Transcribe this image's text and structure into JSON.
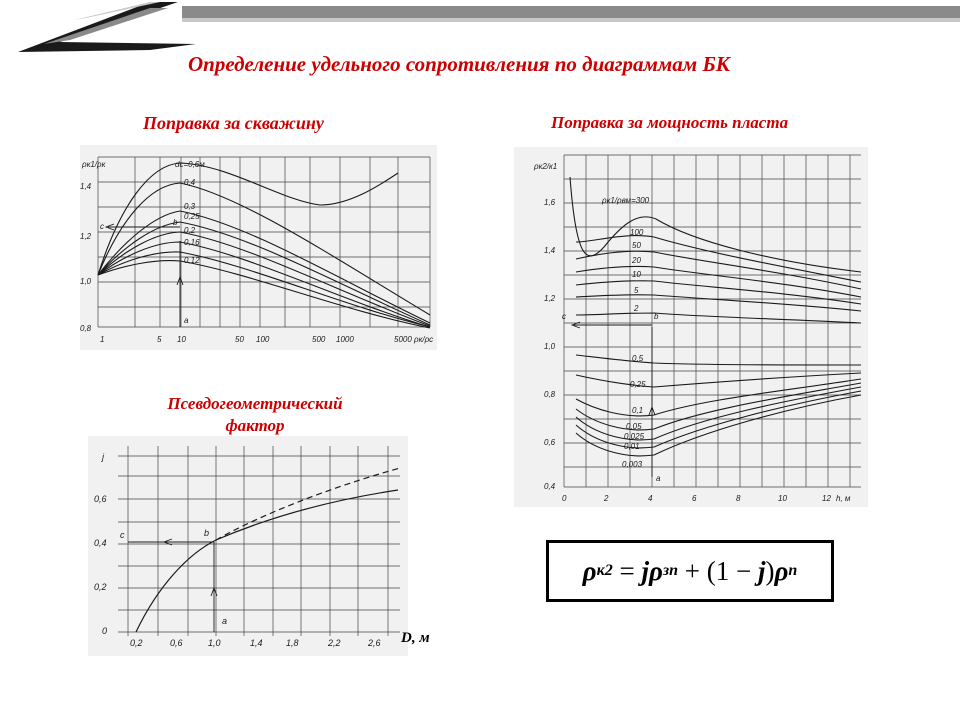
{
  "slide": {
    "title": "Определение удельного сопротивления по диаграммам БК"
  },
  "panels": {
    "borehole": {
      "title": "Поправка за скважину",
      "ylabel": "ρк1/ρк",
      "xlabel": "ρк/ρс",
      "x_ticks": [
        "1",
        "5",
        "10",
        "50",
        "100",
        "500",
        "1000",
        "5000"
      ],
      "y_ticks": [
        "1,4",
        "1,2",
        "1,0",
        "0,8"
      ],
      "curve_param": "dс=0,6м",
      "curve_labels": [
        "0,4",
        "0,3",
        "0,25",
        "0,2",
        "0,16",
        "0,12"
      ],
      "points": {
        "a": "a",
        "b": "b",
        "c": "c"
      }
    },
    "thickness": {
      "title": "Поправка за мощность пласта",
      "ylabel": "ρк2/к1",
      "xlabel": "h, м",
      "x_ticks": [
        "0",
        "2",
        "4",
        "6",
        "8",
        "10",
        "12"
      ],
      "y_ticks": [
        "1,6",
        "1,4",
        "1,2",
        "1,0",
        "0,8",
        "0,6",
        "0,4"
      ],
      "curve_param": "ρк1/ρвм=300",
      "curve_labels": [
        "100",
        "50",
        "20",
        "10",
        "5",
        "2",
        "0,5",
        "0,25",
        "0,1",
        "0,05",
        "0,025",
        "0,01",
        "0,003"
      ],
      "points": {
        "a": "a",
        "b": "b",
        "c": "c"
      }
    },
    "pseudo": {
      "title_line1": "Псевдогеометрический",
      "title_line2": "фактор",
      "ylabel": "j",
      "xlabel": "D, м",
      "x_ticks": [
        "0,2",
        "0,6",
        "1,0",
        "1,4",
        "1,8",
        "2,2",
        "2,6"
      ],
      "y_ticks": [
        "0,6",
        "0,4",
        "0,2",
        "0"
      ],
      "points": {
        "a": "a",
        "b": "b",
        "c": "c"
      }
    }
  },
  "formula": {
    "rho": "ρ",
    "sub_k2": "к2",
    "eq": " = ",
    "j": "j",
    "sub_zp": "зп",
    "plus": " + ",
    "paren": "(1",
    "minus": " − ",
    "paren_close": ")",
    "sub_p": "п"
  },
  "colors": {
    "title_red": "#cc0000",
    "header_bar": "#8a8a8a",
    "chart_bg": "#f1f1f1",
    "ink": "#1a1a1a"
  }
}
